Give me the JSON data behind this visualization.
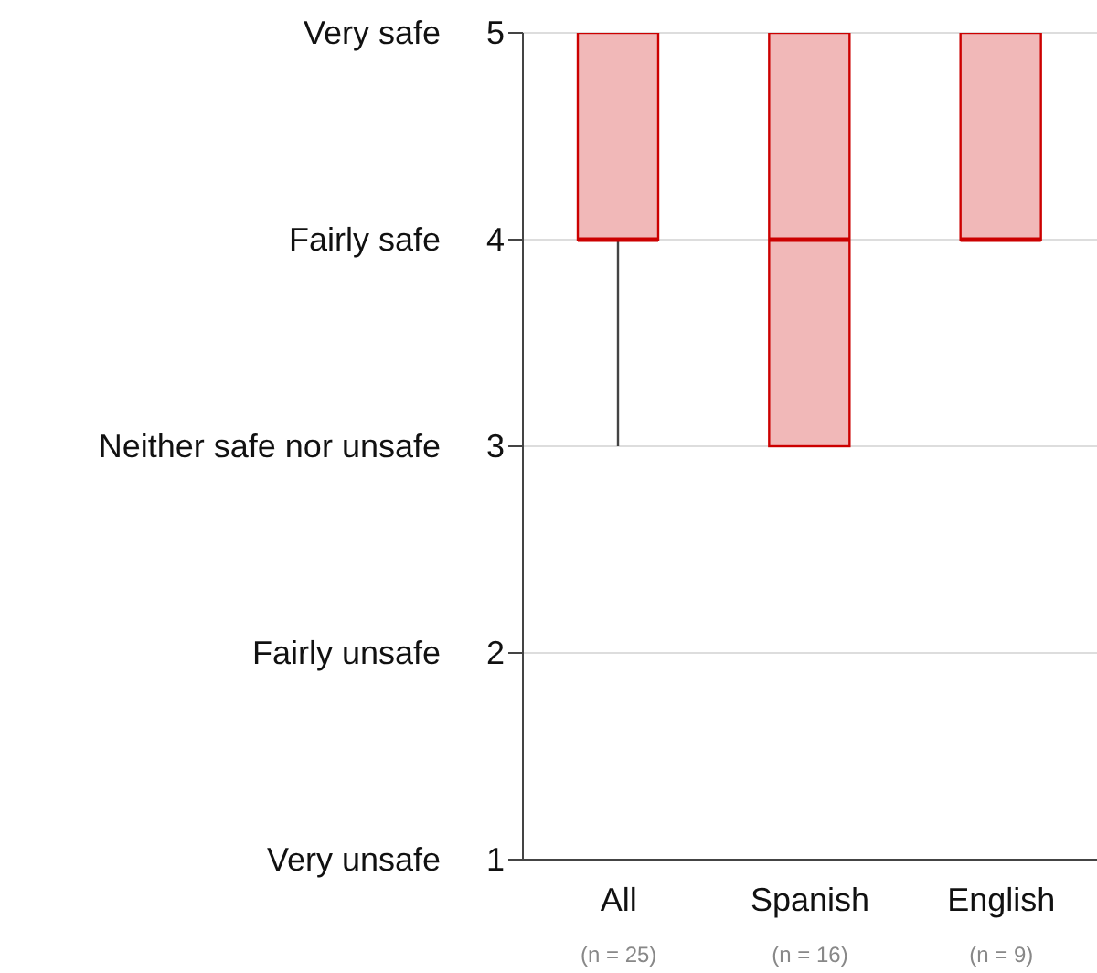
{
  "chart_data": {
    "type": "box",
    "categories": [
      "All",
      "Spanish",
      "English"
    ],
    "boxes": [
      {
        "low": 3,
        "q1": 4,
        "median": 4,
        "q3": 5,
        "high": 5
      },
      {
        "low": 3,
        "q1": 3,
        "median": 4,
        "q3": 5,
        "high": 5
      },
      {
        "low": 4,
        "q1": 4,
        "median": 4,
        "q3": 5,
        "high": 5
      }
    ],
    "color": "#cc0000",
    "ylim": [
      1,
      5
    ],
    "yticks": [
      1,
      2,
      3,
      4,
      5
    ],
    "grid": "y",
    "annotations": [
      "Very unsafe",
      "Fairly unsafe",
      "Neither safe nor unsafe",
      "Fairly safe",
      "Very safe",
      "(n = 25)",
      "(n = 16)",
      "(n = 9)"
    ]
  }
}
